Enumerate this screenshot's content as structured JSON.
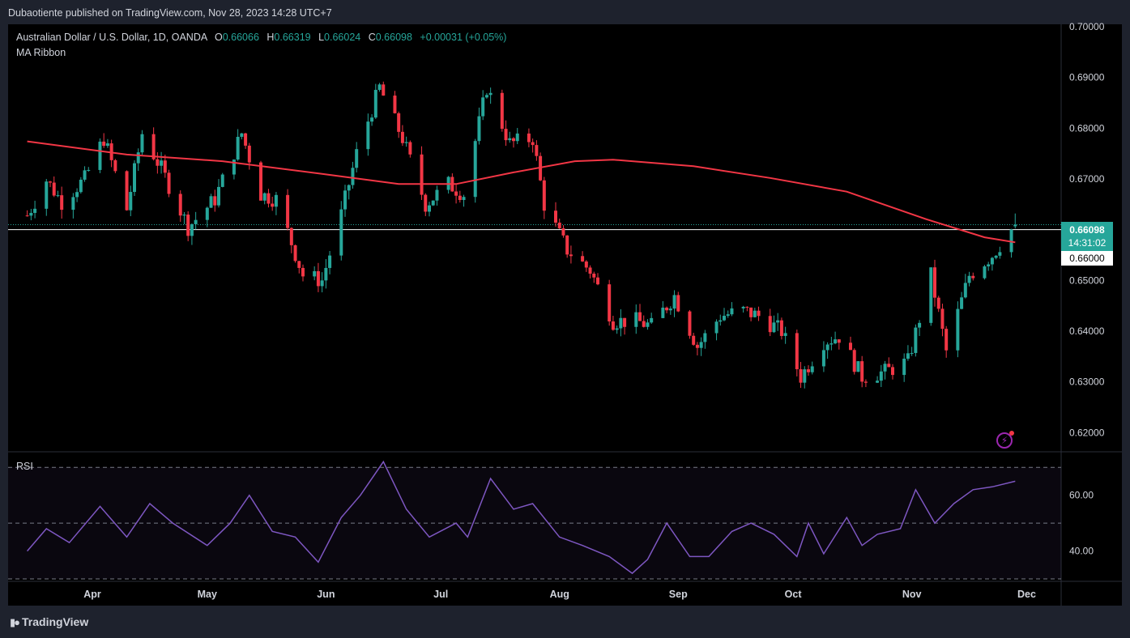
{
  "header": {
    "publisher": "Dubaotiente published on TradingView.com, Nov 28, 2023 14:28 UTC+7"
  },
  "legend": {
    "symbol": "Australian Dollar / U.S. Dollar, 1D, OANDA",
    "o_label": "O",
    "o_value": "0.66066",
    "h_label": "H",
    "h_value": "0.66319",
    "l_label": "L",
    "l_value": "0.66024",
    "c_label": "C",
    "c_value": "0.66098",
    "change": "+0.00031 (+0.05%)"
  },
  "indicator": {
    "name": "MA Ribbon"
  },
  "rsi": {
    "name": "RSI"
  },
  "price_tag": {
    "price": "0.66098",
    "countdown": "14:31:02"
  },
  "level_tag": {
    "price": "0.66000"
  },
  "footer": {
    "brand": "TradingView"
  },
  "colors": {
    "up": "#26a69a",
    "down": "#f23645",
    "ma": "#f23645",
    "rsi": "#7e57c2",
    "background": "#000000"
  },
  "chart_data": [
    {
      "type": "candlestick",
      "y_ticks": [
        "0.70000",
        "0.69000",
        "0.68000",
        "0.67000",
        "0.66000",
        "0.65000",
        "0.64000",
        "0.63000",
        "0.62000"
      ],
      "ylim": [
        0.6183,
        0.7
      ],
      "x_ticks": [
        "Apr",
        "May",
        "Jun",
        "Jul",
        "Aug",
        "Sep",
        "Oct",
        "Nov",
        "Dec"
      ],
      "close_series": [
        {
          "date": "2023-03-15",
          "close": 0.6628
        },
        {
          "date": "2023-03-20",
          "close": 0.6698
        },
        {
          "date": "2023-03-24",
          "close": 0.6655
        },
        {
          "date": "2023-03-30",
          "close": 0.67
        },
        {
          "date": "2023-04-04",
          "close": 0.678
        },
        {
          "date": "2023-04-10",
          "close": 0.664
        },
        {
          "date": "2023-04-14",
          "close": 0.679
        },
        {
          "date": "2023-04-19",
          "close": 0.672
        },
        {
          "date": "2023-04-26",
          "close": 0.6605
        },
        {
          "date": "2023-05-03",
          "close": 0.666
        },
        {
          "date": "2023-05-10",
          "close": 0.679
        },
        {
          "date": "2023-05-15",
          "close": 0.667
        },
        {
          "date": "2023-05-19",
          "close": 0.666
        },
        {
          "date": "2023-05-26",
          "close": 0.651
        },
        {
          "date": "2023-05-31",
          "close": 0.65
        },
        {
          "date": "2023-06-05",
          "close": 0.663
        },
        {
          "date": "2023-06-09",
          "close": 0.675
        },
        {
          "date": "2023-06-15",
          "close": 0.688
        },
        {
          "date": "2023-06-21",
          "close": 0.678
        },
        {
          "date": "2023-06-27",
          "close": 0.665
        },
        {
          "date": "2023-07-03",
          "close": 0.669
        },
        {
          "date": "2023-07-07",
          "close": 0.667
        },
        {
          "date": "2023-07-13",
          "close": 0.688
        },
        {
          "date": "2023-07-19",
          "close": 0.677
        },
        {
          "date": "2023-07-25",
          "close": 0.678
        },
        {
          "date": "2023-07-28",
          "close": 0.665
        },
        {
          "date": "2023-08-03",
          "close": 0.656
        },
        {
          "date": "2023-08-09",
          "close": 0.652
        },
        {
          "date": "2023-08-15",
          "close": 0.642
        },
        {
          "date": "2023-08-21",
          "close": 0.642
        },
        {
          "date": "2023-08-25",
          "close": 0.641
        },
        {
          "date": "2023-08-31",
          "close": 0.647
        },
        {
          "date": "2023-09-06",
          "close": 0.637
        },
        {
          "date": "2023-09-12",
          "close": 0.643
        },
        {
          "date": "2023-09-18",
          "close": 0.644
        },
        {
          "date": "2023-09-22",
          "close": 0.643
        },
        {
          "date": "2023-09-28",
          "close": 0.64
        },
        {
          "date": "2023-10-03",
          "close": 0.631
        },
        {
          "date": "2023-10-09",
          "close": 0.638
        },
        {
          "date": "2023-10-13",
          "close": 0.639
        },
        {
          "date": "2023-10-19",
          "close": 0.631
        },
        {
          "date": "2023-10-25",
          "close": 0.632
        },
        {
          "date": "2023-10-31",
          "close": 0.634
        },
        {
          "date": "2023-11-06",
          "close": 0.651
        },
        {
          "date": "2023-11-10",
          "close": 0.636
        },
        {
          "date": "2023-11-16",
          "close": 0.651
        },
        {
          "date": "2023-11-22",
          "close": 0.655
        },
        {
          "date": "2023-11-28",
          "close": 0.66098
        }
      ],
      "ma_series": [
        {
          "date": "2023-03-15",
          "value": 0.6774
        },
        {
          "date": "2023-04-10",
          "value": 0.6748
        },
        {
          "date": "2023-05-05",
          "value": 0.6735
        },
        {
          "date": "2023-05-31",
          "value": 0.671
        },
        {
          "date": "2023-06-20",
          "value": 0.669
        },
        {
          "date": "2023-07-05",
          "value": 0.669
        },
        {
          "date": "2023-07-20",
          "value": 0.6713
        },
        {
          "date": "2023-08-05",
          "value": 0.6735
        },
        {
          "date": "2023-08-15",
          "value": 0.6738
        },
        {
          "date": "2023-09-05",
          "value": 0.6725
        },
        {
          "date": "2023-09-25",
          "value": 0.6702
        },
        {
          "date": "2023-10-15",
          "value": 0.6675
        },
        {
          "date": "2023-11-05",
          "value": 0.662
        },
        {
          "date": "2023-11-20",
          "value": 0.6585
        },
        {
          "date": "2023-11-28",
          "value": 0.6575
        }
      ]
    },
    {
      "type": "line",
      "y_ticks": [
        "60.00",
        "40.00"
      ],
      "ylim": [
        30,
        75
      ],
      "bands": [
        70,
        50,
        30
      ],
      "series": [
        {
          "date": "2023-03-15",
          "value": 40
        },
        {
          "date": "2023-03-20",
          "value": 48
        },
        {
          "date": "2023-03-26",
          "value": 43
        },
        {
          "date": "2023-04-03",
          "value": 56
        },
        {
          "date": "2023-04-10",
          "value": 45
        },
        {
          "date": "2023-04-16",
          "value": 57
        },
        {
          "date": "2023-04-22",
          "value": 50
        },
        {
          "date": "2023-05-01",
          "value": 42
        },
        {
          "date": "2023-05-07",
          "value": 50
        },
        {
          "date": "2023-05-12",
          "value": 60
        },
        {
          "date": "2023-05-18",
          "value": 47
        },
        {
          "date": "2023-05-24",
          "value": 45
        },
        {
          "date": "2023-05-30",
          "value": 36
        },
        {
          "date": "2023-06-05",
          "value": 52
        },
        {
          "date": "2023-06-10",
          "value": 60
        },
        {
          "date": "2023-06-16",
          "value": 72
        },
        {
          "date": "2023-06-22",
          "value": 55
        },
        {
          "date": "2023-06-28",
          "value": 45
        },
        {
          "date": "2023-07-05",
          "value": 50
        },
        {
          "date": "2023-07-08",
          "value": 45
        },
        {
          "date": "2023-07-14",
          "value": 66
        },
        {
          "date": "2023-07-20",
          "value": 55
        },
        {
          "date": "2023-07-25",
          "value": 57
        },
        {
          "date": "2023-08-01",
          "value": 45
        },
        {
          "date": "2023-08-07",
          "value": 42
        },
        {
          "date": "2023-08-14",
          "value": 38
        },
        {
          "date": "2023-08-20",
          "value": 32
        },
        {
          "date": "2023-08-24",
          "value": 37
        },
        {
          "date": "2023-08-29",
          "value": 50
        },
        {
          "date": "2023-09-04",
          "value": 38
        },
        {
          "date": "2023-09-09",
          "value": 38
        },
        {
          "date": "2023-09-15",
          "value": 47
        },
        {
          "date": "2023-09-20",
          "value": 50
        },
        {
          "date": "2023-09-26",
          "value": 46
        },
        {
          "date": "2023-10-02",
          "value": 38
        },
        {
          "date": "2023-10-05",
          "value": 50
        },
        {
          "date": "2023-10-09",
          "value": 39
        },
        {
          "date": "2023-10-15",
          "value": 52
        },
        {
          "date": "2023-10-19",
          "value": 42
        },
        {
          "date": "2023-10-23",
          "value": 46
        },
        {
          "date": "2023-10-29",
          "value": 48
        },
        {
          "date": "2023-11-02",
          "value": 62
        },
        {
          "date": "2023-11-07",
          "value": 50
        },
        {
          "date": "2023-11-12",
          "value": 57
        },
        {
          "date": "2023-11-17",
          "value": 62
        },
        {
          "date": "2023-11-22",
          "value": 63
        },
        {
          "date": "2023-11-28",
          "value": 65
        }
      ]
    }
  ]
}
